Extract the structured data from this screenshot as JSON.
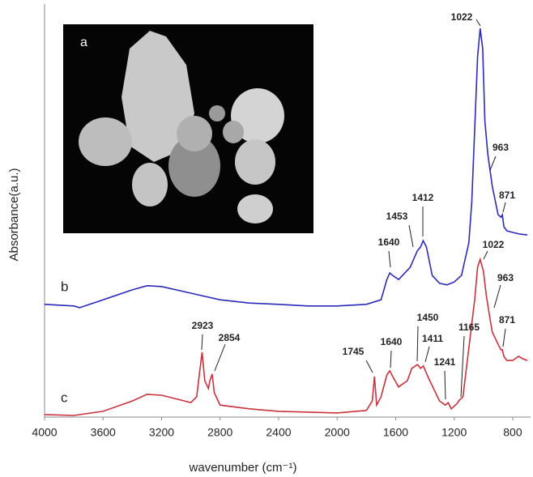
{
  "chart_data": {
    "type": "line",
    "x_label": "wavenumber (cm⁻¹)",
    "y_label": "Absorbance(a.u.)",
    "inset_label": "a",
    "xlim": [
      4000,
      700
    ],
    "ylim": [
      0,
      1
    ],
    "xticks": [
      4000,
      3600,
      3200,
      2800,
      2400,
      2000,
      1600,
      1200,
      800
    ],
    "series": [
      {
        "name": "b",
        "color": "#2b2bb8",
        "x": [
          4000,
          3800,
          3760,
          3600,
          3400,
          3300,
          3200,
          3000,
          2800,
          2600,
          2400,
          2200,
          2000,
          1800,
          1700,
          1660,
          1640,
          1620,
          1580,
          1500,
          1453,
          1430,
          1412,
          1390,
          1350,
          1300,
          1250,
          1200,
          1150,
          1100,
          1080,
          1060,
          1040,
          1022,
          1005,
          990,
          970,
          963,
          940,
          900,
          880,
          871,
          860,
          840,
          800,
          750,
          700
        ],
        "values": [
          0.273,
          0.269,
          0.265,
          0.284,
          0.308,
          0.318,
          0.316,
          0.3,
          0.284,
          0.276,
          0.273,
          0.269,
          0.269,
          0.273,
          0.284,
          0.333,
          0.349,
          0.343,
          0.333,
          0.363,
          0.402,
          0.412,
          0.427,
          0.412,
          0.343,
          0.324,
          0.32,
          0.327,
          0.343,
          0.422,
          0.52,
          0.696,
          0.873,
          0.941,
          0.892,
          0.716,
          0.637,
          0.618,
          0.559,
          0.49,
          0.484,
          0.49,
          0.461,
          0.451,
          0.447,
          0.443,
          0.441
        ],
        "peak_labels": [
          "1640",
          "1453",
          "1412",
          "1022",
          "963",
          "871"
        ]
      },
      {
        "name": "c",
        "color": "#c8323c",
        "x": [
          4000,
          3800,
          3600,
          3400,
          3300,
          3200,
          3000,
          2960,
          2940,
          2923,
          2905,
          2880,
          2870,
          2854,
          2840,
          2800,
          2600,
          2400,
          2000,
          1800,
          1760,
          1745,
          1730,
          1700,
          1660,
          1640,
          1620,
          1580,
          1560,
          1520,
          1490,
          1450,
          1430,
          1411,
          1380,
          1300,
          1260,
          1241,
          1220,
          1180,
          1165,
          1140,
          1100,
          1060,
          1040,
          1022,
          1000,
          980,
          963,
          940,
          900,
          880,
          871,
          860,
          840,
          800,
          760,
          730,
          700
        ],
        "values": [
          0.006,
          0.004,
          0.014,
          0.039,
          0.055,
          0.053,
          0.035,
          0.049,
          0.108,
          0.157,
          0.088,
          0.069,
          0.088,
          0.104,
          0.059,
          0.029,
          0.02,
          0.014,
          0.01,
          0.016,
          0.039,
          0.098,
          0.029,
          0.049,
          0.102,
          0.112,
          0.098,
          0.073,
          0.078,
          0.088,
          0.118,
          0.127,
          0.118,
          0.124,
          0.098,
          0.039,
          0.029,
          0.035,
          0.02,
          0.033,
          0.041,
          0.049,
          0.167,
          0.284,
          0.363,
          0.382,
          0.353,
          0.294,
          0.255,
          0.206,
          0.176,
          0.163,
          0.163,
          0.147,
          0.137,
          0.137,
          0.147,
          0.141,
          0.137
        ],
        "peak_labels": [
          "2923",
          "2854",
          "1745",
          "1640",
          "1450",
          "1411",
          "1241",
          "1165",
          "1022",
          "963",
          "871"
        ]
      }
    ]
  }
}
